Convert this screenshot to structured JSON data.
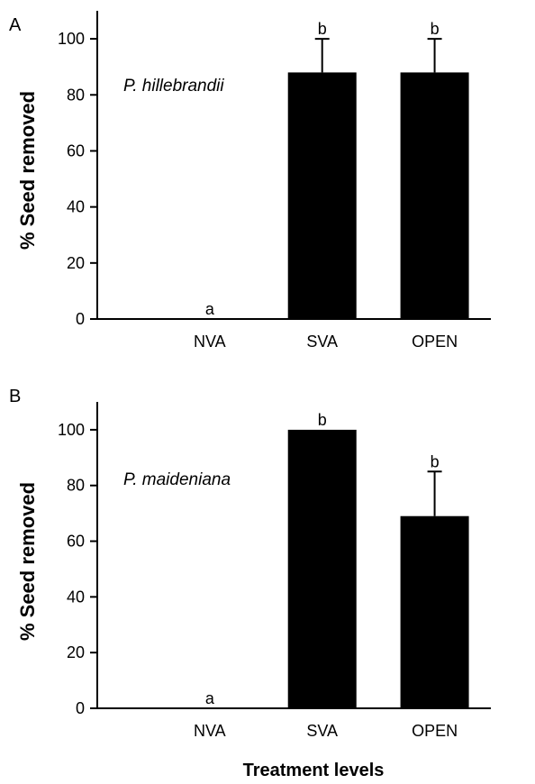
{
  "figure": {
    "xlabel": "Treatment levels"
  },
  "chart_data": [
    {
      "type": "bar",
      "panel": "A",
      "species": "P. hillebrandii",
      "ylabel": "% Seed removed",
      "categories": [
        "NVA",
        "SVA",
        "OPEN"
      ],
      "values": [
        0,
        88,
        88
      ],
      "error_upper": [
        0,
        100,
        100
      ],
      "significance": [
        "a",
        "b",
        "b"
      ],
      "ylim": [
        0,
        110
      ],
      "yticks": [
        0,
        20,
        40,
        60,
        80,
        100
      ],
      "bar_color": "#000000",
      "grid": false
    },
    {
      "type": "bar",
      "panel": "B",
      "species": "P. maideniana",
      "ylabel": "% Seed removed",
      "categories": [
        "NVA",
        "SVA",
        "OPEN"
      ],
      "values": [
        0,
        100,
        69
      ],
      "error_upper": [
        0,
        100,
        85
      ],
      "significance": [
        "a",
        "b",
        "b"
      ],
      "ylim": [
        0,
        110
      ],
      "yticks": [
        0,
        20,
        40,
        60,
        80,
        100
      ],
      "bar_color": "#000000",
      "grid": false
    }
  ]
}
